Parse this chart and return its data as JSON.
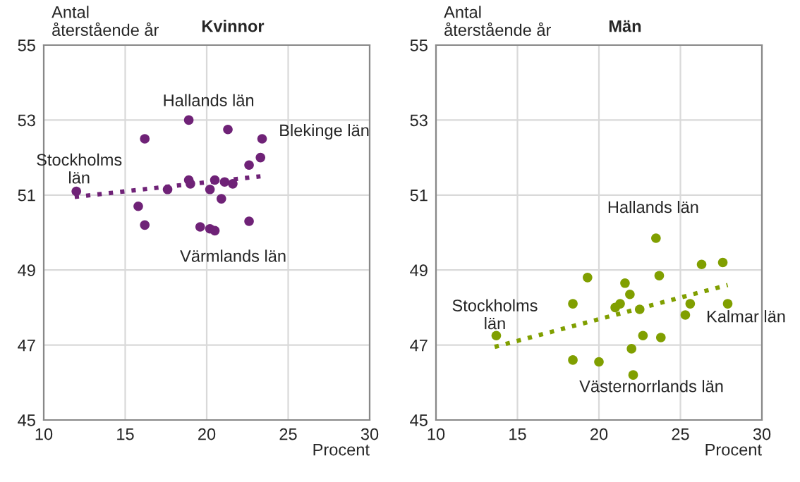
{
  "chart_data": [
    {
      "type": "scatter",
      "title": "Kvinnor",
      "ylabel": "Antal\nåterstående år",
      "xlabel": "Procent",
      "xlim": [
        10,
        30
      ],
      "xticks": [
        10,
        15,
        20,
        25,
        30
      ],
      "ylim": [
        45,
        55
      ],
      "yticks": [
        45,
        47,
        49,
        51,
        53,
        55
      ],
      "grid": true,
      "marker": "circle",
      "series": [
        {
          "color": "#6f2277",
          "x": [
            12.0,
            15.8,
            16.2,
            16.2,
            17.6,
            18.9,
            18.9,
            19.0,
            19.6,
            20.2,
            20.5,
            20.2,
            20.5,
            20.9,
            21.1,
            21.3,
            21.6,
            22.6,
            22.6,
            23.3,
            23.4
          ],
          "values": [
            51.1,
            50.7,
            50.2,
            52.5,
            51.15,
            53.0,
            51.4,
            51.3,
            50.15,
            50.1,
            50.05,
            51.15,
            51.4,
            50.9,
            51.35,
            52.75,
            51.3,
            51.8,
            50.3,
            52.0,
            52.5
          ]
        },
        {
          "type": "line",
          "color": "#6f2277",
          "line_style": "dotted",
          "marker": "none",
          "x": [
            11.9,
            23.3
          ],
          "values": [
            50.95,
            51.5
          ]
        }
      ],
      "annotations": [
        {
          "text": "Hallands län",
          "x": 18.9,
          "y": 53.0
        },
        {
          "text": "Blekinge län",
          "x": 23.4,
          "y": 52.5
        },
        {
          "text": "Stockholms\nlän",
          "x": 12.0,
          "y": 51.1
        },
        {
          "text": "Värmlands län",
          "x": 20.5,
          "y": 50.05
        }
      ]
    },
    {
      "type": "scatter",
      "title": "Män",
      "ylabel": "Antal\nåterstående år",
      "xlabel": "Procent",
      "xlim": [
        10,
        30
      ],
      "xticks": [
        10,
        15,
        20,
        25,
        30
      ],
      "ylim": [
        45,
        55
      ],
      "yticks": [
        45,
        47,
        49,
        51,
        53,
        55
      ],
      "grid": true,
      "marker": "circle",
      "series": [
        {
          "color": "#809f00",
          "x": [
            13.7,
            18.4,
            18.4,
            19.3,
            20.0,
            21.0,
            21.3,
            21.6,
            21.9,
            22.0,
            22.1,
            22.5,
            22.7,
            23.5,
            23.7,
            23.8,
            25.3,
            25.6,
            26.3,
            27.6,
            27.9
          ],
          "values": [
            47.25,
            48.1,
            46.6,
            48.8,
            46.55,
            48.0,
            48.1,
            48.65,
            48.35,
            46.9,
            46.2,
            47.95,
            47.25,
            49.85,
            48.85,
            47.2,
            47.8,
            48.1,
            49.15,
            49.2,
            48.1
          ]
        },
        {
          "type": "line",
          "color": "#809f00",
          "line_style": "dotted",
          "marker": "none",
          "x": [
            13.6,
            27.9
          ],
          "values": [
            46.95,
            48.6
          ]
        }
      ],
      "annotations": [
        {
          "text": "Hallands län",
          "x": 23.5,
          "y": 49.85
        },
        {
          "text": "Kalmar län",
          "x": 27.9,
          "y": 48.1
        },
        {
          "text": "Stockholms\nlän",
          "x": 13.7,
          "y": 47.25
        },
        {
          "text": "Västernorrlands län",
          "x": 22.1,
          "y": 46.2
        }
      ]
    }
  ]
}
